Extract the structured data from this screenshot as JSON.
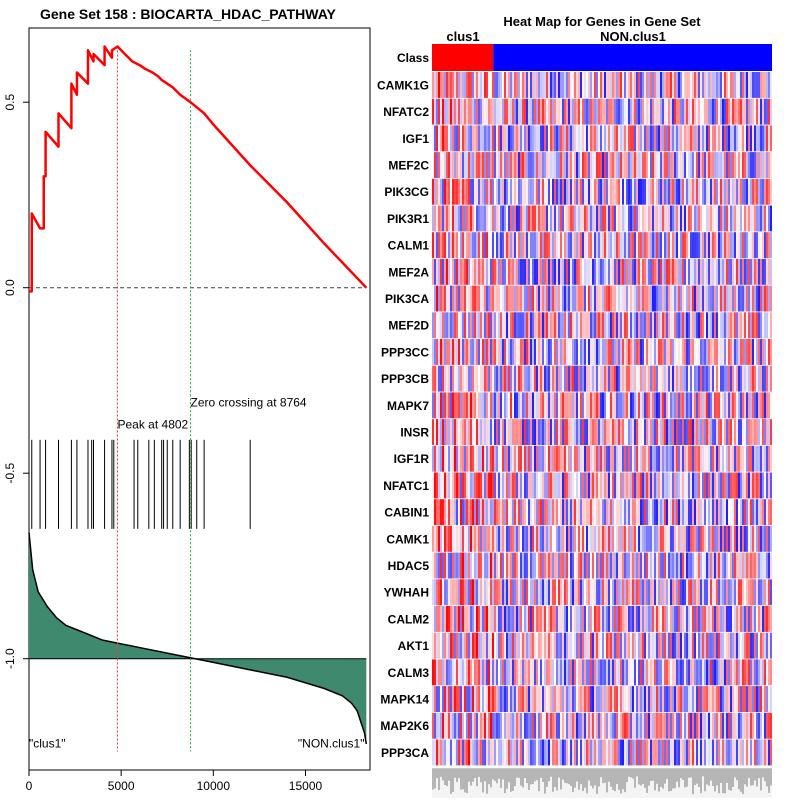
{
  "chart_data": [
    {
      "type": "line",
      "title": "Gene Set  158 : BIOCARTA_HDAC_PATHWAY",
      "xlim": [
        0,
        18500
      ],
      "ylim": [
        -1.3,
        0.7
      ],
      "x_ticks": [
        0,
        5000,
        10000,
        15000
      ],
      "y_ticks": [
        0.5,
        0.0,
        -0.5,
        -1.0
      ],
      "x_tick_labels": [
        "0",
        "5000",
        "10000",
        "15000"
      ],
      "y_tick_labels": [
        "0.5",
        "0.0",
        "-0.5",
        "-1.0"
      ],
      "enrichment_curve": {
        "x": [
          0,
          150,
          151,
          600,
          800,
          801,
          900,
          901,
          1600,
          1601,
          2300,
          2301,
          2600,
          2601,
          3200,
          3201,
          3500,
          3501,
          4100,
          4101,
          4500,
          4501,
          4802,
          5200,
          5600,
          6000,
          6300,
          6700,
          7000,
          7200,
          7500,
          7800,
          8200,
          8764,
          9500,
          10000,
          12000,
          14000,
          16000,
          18300
        ],
        "y": [
          -0.01,
          -0.01,
          0.2,
          0.16,
          0.16,
          0.3,
          0.3,
          0.42,
          0.38,
          0.47,
          0.43,
          0.55,
          0.52,
          0.58,
          0.55,
          0.64,
          0.61,
          0.63,
          0.6,
          0.65,
          0.62,
          0.64,
          0.65,
          0.63,
          0.61,
          0.6,
          0.59,
          0.58,
          0.57,
          0.56,
          0.55,
          0.54,
          0.52,
          0.5,
          0.47,
          0.44,
          0.33,
          0.23,
          0.12,
          0.0
        ]
      },
      "baseline_y": 0.0,
      "peak": {
        "x": 4802,
        "label": "Peak at 4802"
      },
      "zero_crossing": {
        "x": 8764,
        "label": "Zero crossing at 8764"
      },
      "hit_positions": [
        150,
        600,
        900,
        1600,
        2300,
        2600,
        3200,
        3400,
        3500,
        4100,
        4500,
        4600,
        5700,
        5900,
        6500,
        6800,
        7200,
        7300,
        7500,
        7800,
        8200,
        8700,
        8800,
        9100,
        9500,
        12000
      ],
      "ranked_metric": {
        "x": [
          0,
          200,
          500,
          1000,
          1500,
          2000,
          3000,
          4000,
          5000,
          6000,
          8000,
          10000,
          12000,
          14000,
          16000,
          17000,
          17500,
          17800,
          18000,
          18200,
          18300
        ],
        "y": [
          -0.66,
          -0.76,
          -0.82,
          -0.86,
          -0.89,
          -0.91,
          -0.93,
          -0.95,
          -0.96,
          -0.97,
          -0.99,
          -1.01,
          -1.03,
          -1.05,
          -1.08,
          -1.1,
          -1.12,
          -1.14,
          -1.17,
          -1.2,
          -1.23
        ]
      },
      "ranked_baseline_y": -1.0,
      "left_label": "\"clus1\"",
      "right_label": "\"NON.clus1\""
    },
    {
      "type": "heatmap",
      "title": "Heat Map for Genes in Gene Set",
      "class_label": "Class",
      "classes": [
        "clus1",
        "NON.clus1"
      ],
      "class_colors": [
        "#ff0000",
        "#0000ff"
      ],
      "clus1_fraction": 0.18,
      "genes": [
        "CAMK1G",
        "NFATC2",
        "IGF1",
        "MEF2C",
        "PIK3CG",
        "PIK3R1",
        "CALM1",
        "MEF2A",
        "PIK3CA",
        "MEF2D",
        "PPP3CC",
        "PPP3CB",
        "MAPK7",
        "INSR",
        "IGF1R",
        "NFATC1",
        "CABIN1",
        "CAMK1",
        "HDAC5",
        "YWHAH",
        "CALM2",
        "AKT1",
        "CALM3",
        "MAPK14",
        "MAP2K6",
        "PPP3CA"
      ],
      "column_count": 170,
      "low_color": "#0000ff",
      "mid_color": "#ffffff",
      "high_color": "#ff0000"
    }
  ],
  "colors": {
    "curve": "#ff0000",
    "metric_fill": "#3f8a6e",
    "peak_line": "#ff3333",
    "zero_line": "#22aa22",
    "hit": "#000000"
  }
}
